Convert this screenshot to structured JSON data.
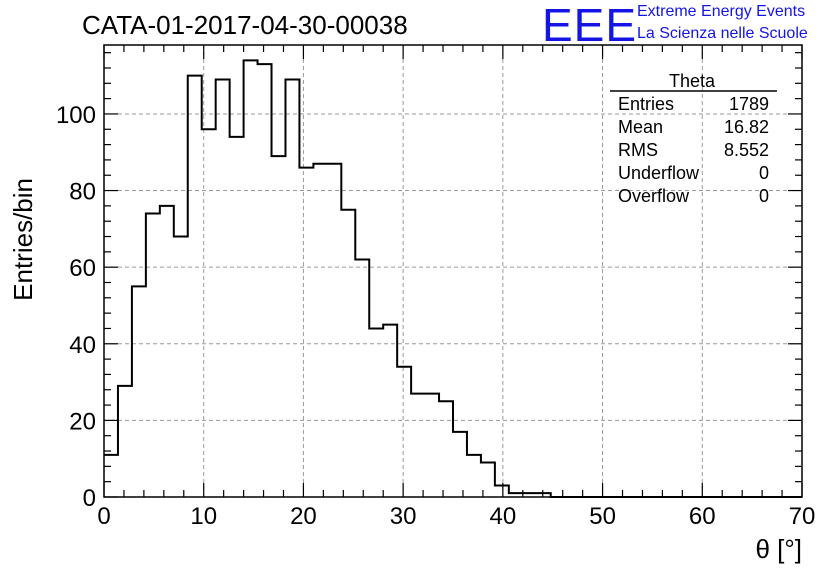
{
  "header": {
    "title": "CATA-01-2017-04-30-00038",
    "logo_text": "EEE",
    "logo_line1": "Extreme Energy Events",
    "logo_line2": "La Scienza nelle Scuole"
  },
  "stats": {
    "name": "Theta",
    "rows": [
      {
        "label": "Entries",
        "value": "1789"
      },
      {
        "label": "Mean",
        "value": "16.82"
      },
      {
        "label": "RMS",
        "value": "8.552"
      },
      {
        "label": "Underflow",
        "value": "0"
      },
      {
        "label": "Overflow",
        "value": "0"
      }
    ]
  },
  "chart_data": {
    "type": "histogram",
    "title": "CATA-01-2017-04-30-00038",
    "xlabel": "θ [°]",
    "ylabel": "Entries/bin",
    "xlim": [
      0,
      70
    ],
    "ylim": [
      0,
      118
    ],
    "bin_width": 1.4,
    "xticks": [
      0,
      10,
      20,
      30,
      40,
      50,
      60,
      70
    ],
    "yticks": [
      0,
      20,
      40,
      60,
      80,
      100
    ],
    "grid": true,
    "bin_edges_start": 0,
    "values": [
      11,
      29,
      55,
      74,
      76,
      68,
      110,
      96,
      109,
      94,
      114,
      113,
      89,
      109,
      86,
      87,
      87,
      75,
      62,
      44,
      45,
      34,
      27,
      27,
      25,
      17,
      11,
      9,
      3,
      1,
      1,
      1,
      0,
      0,
      0,
      0,
      0,
      0,
      0,
      0,
      0,
      0,
      0,
      0,
      0,
      0,
      0,
      0,
      0,
      0
    ]
  }
}
